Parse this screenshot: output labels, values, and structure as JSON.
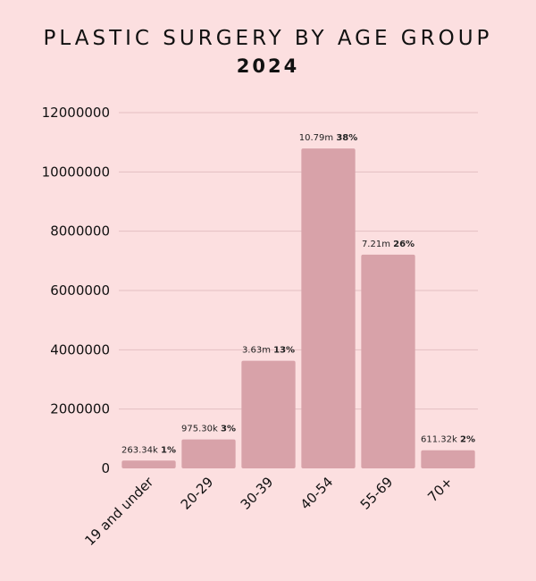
{
  "header": {
    "title": "PLASTIC SURGERY BY AGE GROUP",
    "subtitle": "2024"
  },
  "chart_data": {
    "type": "bar",
    "title": "PLASTIC SURGERY BY AGE GROUP",
    "subtitle": "2024",
    "categories": [
      "19 and under",
      "20-29",
      "30-39",
      "40-54",
      "55-69",
      "70+"
    ],
    "values": [
      263340,
      975300,
      3630000,
      10790000,
      7210000,
      611320
    ],
    "value_labels": [
      "263.34k",
      "975.30k",
      "3.63m",
      "10.79m",
      "7.21m",
      "611.32k"
    ],
    "percent_labels": [
      "1%",
      "3%",
      "13%",
      "38%",
      "26%",
      "2%"
    ],
    "yticks": [
      "0",
      "2000000",
      "4000000",
      "6000000",
      "8000000",
      "10000000",
      "12000000"
    ],
    "ylim": [
      0,
      12000000
    ],
    "xlabel": "",
    "ylabel": "",
    "grid": true,
    "bar_color": "#d8a2a9",
    "grid_color": "#e3bfc2"
  }
}
